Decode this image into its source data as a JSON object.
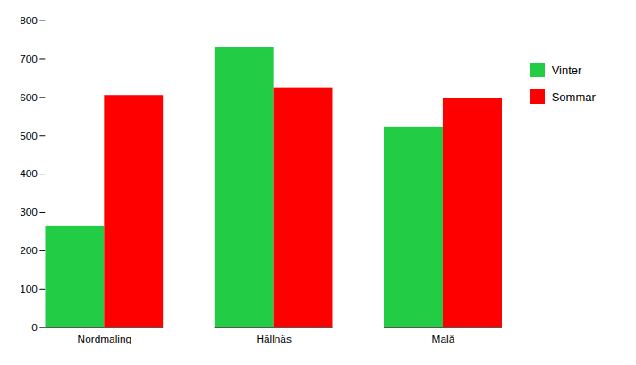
{
  "chart_data": {
    "type": "bar",
    "categories": [
      "Nordmaling",
      "Hällnäs",
      "Malå"
    ],
    "series": [
      {
        "name": "Vinter",
        "color": "#22cc44",
        "values": [
          263,
          730,
          522
        ]
      },
      {
        "name": "Sommar",
        "color": "#ff0000",
        "values": [
          605,
          625,
          598
        ]
      }
    ],
    "ylim": [
      0,
      800
    ],
    "yticks": [
      0,
      100,
      200,
      300,
      400,
      500,
      600,
      700,
      800
    ],
    "grid": false,
    "legend": "right"
  }
}
